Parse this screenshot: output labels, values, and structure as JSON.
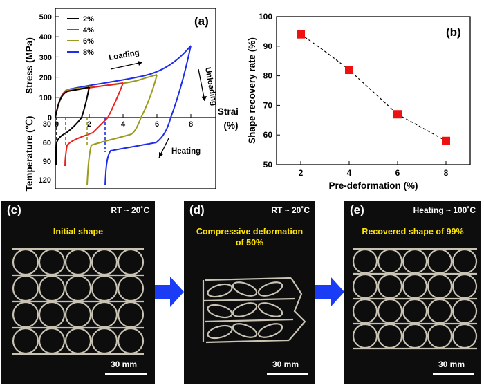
{
  "panel_a": {
    "label": "(a)",
    "ylabel_top": "Stress (MPa)",
    "ylabel_bottom": "Temperature (℃)",
    "xlabel_line1": "Strain",
    "xlabel_line2": "(%)",
    "stress_ticks": [
      "0",
      "100",
      "200",
      "300",
      "400",
      "500"
    ],
    "temp_ticks": [
      "30",
      "60",
      "90",
      "120"
    ],
    "strain_ticks": [
      "0",
      "2",
      "4",
      "6",
      "8"
    ],
    "annotations": {
      "loading": "Loading",
      "unloading": "Unloading",
      "heating": "Heating"
    },
    "legend": [
      {
        "name": "2%",
        "color": "#000000"
      },
      {
        "name": "4%",
        "color": "#e8231e"
      },
      {
        "name": "6%",
        "color": "#9a9a1c"
      },
      {
        "name": "8%",
        "color": "#1e2ee8"
      }
    ]
  },
  "chart_data": {
    "type": "scatter",
    "title": "",
    "label": "(b)",
    "xlabel": "Pre-deformation (%)",
    "ylabel": "Shape recovery rate (%)",
    "x": [
      2,
      4,
      6,
      8
    ],
    "values": [
      94,
      82,
      67,
      58
    ],
    "xticks": [
      "2",
      "4",
      "6",
      "8"
    ],
    "yticks": [
      "50",
      "60",
      "70",
      "80",
      "90",
      "100"
    ],
    "xlim": [
      1,
      9
    ],
    "ylim": [
      50,
      100
    ],
    "marker_color": "#ee1111",
    "line_style": "dashed"
  },
  "panel_c": {
    "label": "(c)",
    "condition": "RT ~ 20˚C",
    "caption": "Initial shape",
    "scale": "30 mm"
  },
  "panel_d": {
    "label": "(d)",
    "condition": "RT ~ 20˚C",
    "caption_line1": "Compressive deformation",
    "caption_line2": "of 50%",
    "scale": "30 mm"
  },
  "panel_e": {
    "label": "(e)",
    "condition": "Heating ~ 100˚C",
    "caption": "Recovered shape of 99%",
    "scale": "30 mm"
  },
  "colors": {
    "arrow": "#1a3cf5",
    "caption": "#ffe600"
  }
}
